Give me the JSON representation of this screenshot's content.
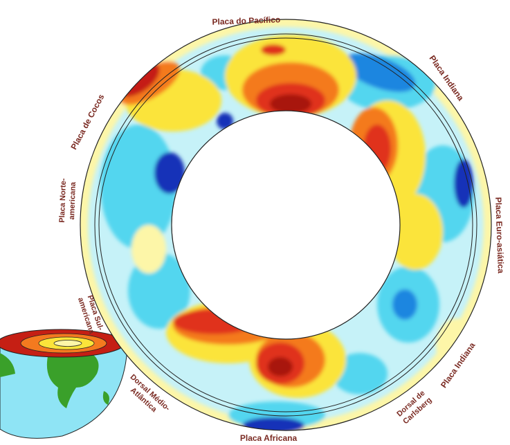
{
  "figure": {
    "labels": {
      "pacific": "Placa do Pacífico",
      "indian_top": "Placa Indiana",
      "eurasian": "Placa Euro-asiática",
      "indian_bottom": "Placa Indiana",
      "carlsberg": [
        "Dorsal de",
        "Carlsberg"
      ],
      "african": "Placa Africana",
      "mid_atlantic": [
        "Dorsal Médio-",
        "Atlântica"
      ],
      "south_american": [
        "Placa Sul-",
        "americana"
      ],
      "north_american": [
        "Placa Norte-",
        "americana"
      ],
      "cocos": "Placa de Cocos"
    },
    "colors": {
      "dark_red": "#a8140f",
      "red": "#e0321c",
      "orange": "#f47a1f",
      "yellow": "#fbe43a",
      "light_yellow": "#fdf6a8",
      "pale_cyan": "#c6f2f8",
      "cyan": "#53d6ef",
      "blue": "#1f86e0",
      "dark_blue": "#1230b8",
      "label": "#7a2a22",
      "globe_ocean": "#8fe4f5",
      "globe_land": "#3aa02a"
    }
  }
}
